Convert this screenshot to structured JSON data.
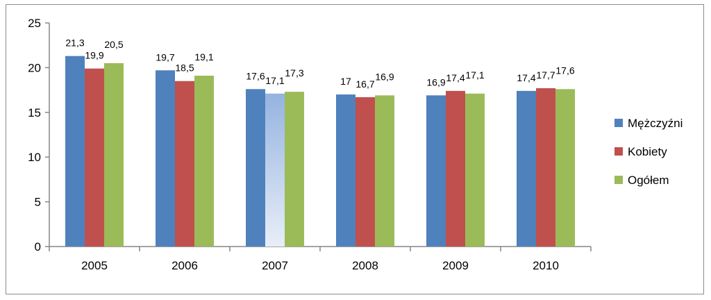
{
  "chart_data": {
    "type": "bar",
    "title": "",
    "xlabel": "",
    "ylabel": "",
    "ylim": [
      0,
      25
    ],
    "yticks": [
      0,
      5,
      10,
      15,
      20,
      25
    ],
    "grid": false,
    "legend_position": "right",
    "categories": [
      "2005",
      "2006",
      "2007",
      "2008",
      "2009",
      "2010"
    ],
    "series": [
      {
        "name": "Mężczyźni",
        "color": "#4f81bd",
        "values": [
          21.3,
          19.7,
          17.6,
          17,
          16.9,
          17.4
        ],
        "labels": [
          "21,3",
          "19,7",
          "17,6",
          "17",
          "16,9",
          "17,4"
        ]
      },
      {
        "name": "Kobiety",
        "color": "#c0504d",
        "values": [
          19.9,
          18.5,
          17.1,
          16.7,
          17.4,
          17.7
        ],
        "labels": [
          "19,9",
          "18,5",
          "17,1",
          "16,7",
          "17,4",
          "17,7"
        ],
        "highlight_category": "2007",
        "highlight_gradient": [
          "#95b3e0",
          "#e8eef8"
        ]
      },
      {
        "name": "Ogółem",
        "color": "#9bbb59",
        "values": [
          20.5,
          19.1,
          17.3,
          16.9,
          17.1,
          17.6
        ],
        "labels": [
          "20,5",
          "19,1",
          "17,3",
          "16,9",
          "17,1",
          "17,6"
        ]
      }
    ]
  }
}
